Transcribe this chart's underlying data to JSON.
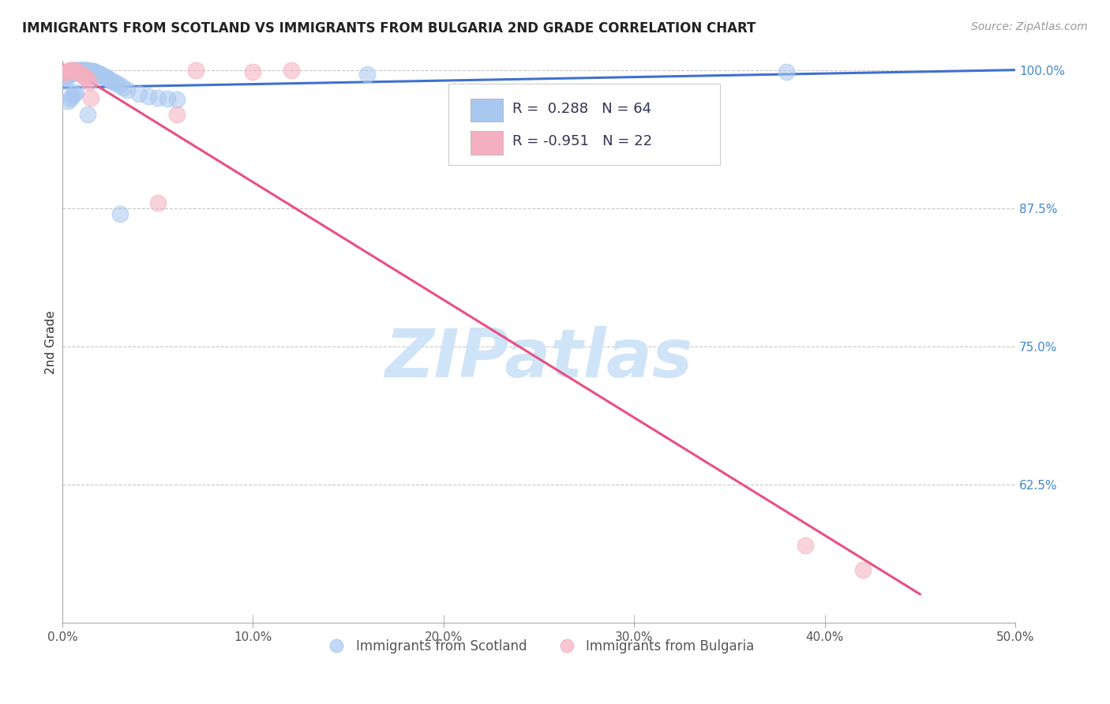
{
  "title": "IMMIGRANTS FROM SCOTLAND VS IMMIGRANTS FROM BULGARIA 2ND GRADE CORRELATION CHART",
  "source": "Source: ZipAtlas.com",
  "ylabel": "2nd Grade",
  "xlim": [
    0.0,
    0.5
  ],
  "ylim": [
    0.5,
    1.008
  ],
  "xtick_labels": [
    "0.0%",
    "10.0%",
    "20.0%",
    "30.0%",
    "40.0%",
    "50.0%"
  ],
  "xtick_vals": [
    0.0,
    0.1,
    0.2,
    0.3,
    0.4,
    0.5
  ],
  "ytick_labels": [
    "62.5%",
    "75.0%",
    "87.5%",
    "100.0%"
  ],
  "ytick_vals": [
    0.625,
    0.75,
    0.875,
    1.0
  ],
  "scotland_R": 0.288,
  "scotland_N": 64,
  "bulgaria_R": -0.951,
  "bulgaria_N": 22,
  "scotland_color": "#a8c8f0",
  "scotland_fill_color": "#a8c8f0",
  "bulgaria_color": "#f4b0c0",
  "bulgaria_fill_color": "#f4b0c0",
  "scotland_line_color": "#4070d0",
  "bulgaria_line_color": "#e85080",
  "watermark": "ZIPatlas",
  "watermark_color": "#d0e4f8",
  "background_color": "#ffffff",
  "grid_color": "#c8c8c8",
  "scotland_x": [
    0.001,
    0.002,
    0.002,
    0.003,
    0.003,
    0.004,
    0.004,
    0.005,
    0.005,
    0.006,
    0.006,
    0.007,
    0.007,
    0.008,
    0.008,
    0.009,
    0.009,
    0.01,
    0.01,
    0.011,
    0.011,
    0.012,
    0.012,
    0.013,
    0.013,
    0.014,
    0.014,
    0.015,
    0.015,
    0.016,
    0.016,
    0.017,
    0.017,
    0.018,
    0.018,
    0.019,
    0.019,
    0.02,
    0.02,
    0.021,
    0.022,
    0.023,
    0.024,
    0.025,
    0.026,
    0.027,
    0.028,
    0.03,
    0.032,
    0.034,
    0.04,
    0.045,
    0.05,
    0.055,
    0.06,
    0.013,
    0.03,
    0.16,
    0.38,
    0.003,
    0.004,
    0.005,
    0.006,
    0.007
  ],
  "scotland_y": [
    0.99,
    0.993,
    0.997,
    0.995,
    0.998,
    0.996,
    0.999,
    0.997,
    1.0,
    0.998,
    1.0,
    0.999,
    1.0,
    0.999,
    1.0,
    1.0,
    1.0,
    1.0,
    1.0,
    1.0,
    1.0,
    1.0,
    1.0,
    1.0,
    0.999,
    0.999,
    0.999,
    0.999,
    0.999,
    0.999,
    0.998,
    0.998,
    0.998,
    0.997,
    0.997,
    0.996,
    0.997,
    0.995,
    0.996,
    0.995,
    0.994,
    0.993,
    0.992,
    0.991,
    0.99,
    0.989,
    0.988,
    0.986,
    0.984,
    0.982,
    0.978,
    0.976,
    0.975,
    0.974,
    0.973,
    0.96,
    0.87,
    0.996,
    0.998,
    0.972,
    0.974,
    0.976,
    0.978,
    0.98
  ],
  "bulgaria_x": [
    0.001,
    0.002,
    0.003,
    0.004,
    0.005,
    0.006,
    0.007,
    0.008,
    0.009,
    0.01,
    0.011,
    0.012,
    0.013,
    0.014,
    0.015,
    0.05,
    0.06,
    0.07,
    0.1,
    0.12,
    0.39,
    0.42
  ],
  "bulgaria_y": [
    0.997,
    0.998,
    0.999,
    1.0,
    1.0,
    1.0,
    0.999,
    0.998,
    0.997,
    0.996,
    0.995,
    0.993,
    0.991,
    0.989,
    0.975,
    0.88,
    0.96,
    1.0,
    0.998,
    1.0,
    0.57,
    0.548
  ],
  "scotland_line_x": [
    0.0,
    0.5
  ],
  "scotland_line_y": [
    0.984,
    1.0
  ],
  "bulgaria_line_x": [
    0.0,
    0.45
  ],
  "bulgaria_line_y": [
    1.005,
    0.526
  ]
}
